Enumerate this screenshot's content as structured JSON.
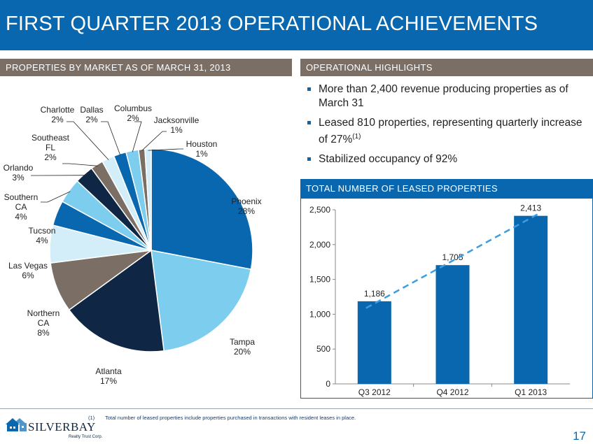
{
  "title": "FIRST QUARTER 2013 OPERATIONAL  ACHIEVEMENTS",
  "left_section_title": "PROPERTIES BY MARKET AS OF MARCH 31, 2013",
  "right_section_title": "OPERATIONAL HIGHLIGHTS",
  "highlights": [
    {
      "text": "More than 2,400 revenue producing properties as of March 31"
    },
    {
      "text": "Leased 810 properties, representing quarterly increase of 27%",
      "sup": "(1)"
    },
    {
      "text": "Stabilized occupancy of 92%"
    }
  ],
  "bar_section_title": "TOTAL NUMBER OF LEASED PROPERTIES",
  "footnote_number": "(1)",
  "footnote": "Total number of leased properties include properties purchased in transactions with resident leases in place.",
  "logo": {
    "name": "SILVERBAY",
    "sub": "Realty Trust Corp."
  },
  "page_number": "17",
  "colors": {
    "primary_blue": "#0867ae",
    "section_gray": "#7a6e65",
    "bar_blue": "#0867ae",
    "trend_blue": "#3b9ee0"
  },
  "chart_data": [
    {
      "type": "pie",
      "title": "PROPERTIES BY MARKET AS OF MARCH 31, 2013",
      "slices": [
        {
          "label": "Phoenix",
          "value": 28,
          "display": "28%",
          "color": "#0867ae"
        },
        {
          "label": "Tampa",
          "value": 20,
          "display": "20%",
          "color": "#7dcdee"
        },
        {
          "label": "Atlanta",
          "value": 17,
          "display": "17%",
          "color": "#0f2745"
        },
        {
          "label": "Northern CA",
          "value": 8,
          "display": "8%",
          "color": "#7a6e65"
        },
        {
          "label": "Las Vegas",
          "value": 6,
          "display": "6%",
          "color": "#d3eef9"
        },
        {
          "label": "Tucson",
          "value": 4,
          "display": "4%",
          "color": "#0867ae"
        },
        {
          "label": "Southern CA",
          "value": 4,
          "display": "4%",
          "color": "#7dcdee"
        },
        {
          "label": "Orlando",
          "value": 3,
          "display": "3%",
          "color": "#0f2745"
        },
        {
          "label": "Southeast FL",
          "value": 2,
          "display": "2%",
          "color": "#7a6e65"
        },
        {
          "label": "Charlotte",
          "value": 2,
          "display": "2%",
          "color": "#d3eef9"
        },
        {
          "label": "Dallas",
          "value": 2,
          "display": "2%",
          "color": "#0867ae"
        },
        {
          "label": "Columbus",
          "value": 2,
          "display": "2%",
          "color": "#7dcdee"
        },
        {
          "label": "Jacksonville",
          "value": 1,
          "display": "1%",
          "color": "#7a6e65"
        },
        {
          "label": "Houston",
          "value": 1,
          "display": "1%",
          "color": "#d3eef9"
        }
      ]
    },
    {
      "type": "bar",
      "title": "TOTAL NUMBER OF LEASED PROPERTIES",
      "categories": [
        "Q3 2012",
        "Q4 2012",
        "Q1 2013"
      ],
      "values": [
        1186,
        1705,
        2413
      ],
      "value_labels": [
        "1,186",
        "1,705",
        "2,413"
      ],
      "ylim": [
        0,
        2500
      ],
      "yticks": [
        0,
        500,
        1000,
        1500,
        2000,
        2500
      ],
      "ytick_labels": [
        "0",
        "500",
        "1,000",
        "1,500",
        "2,000",
        "2,500"
      ],
      "trend_line": "dashed linear trend",
      "grid": false
    }
  ]
}
